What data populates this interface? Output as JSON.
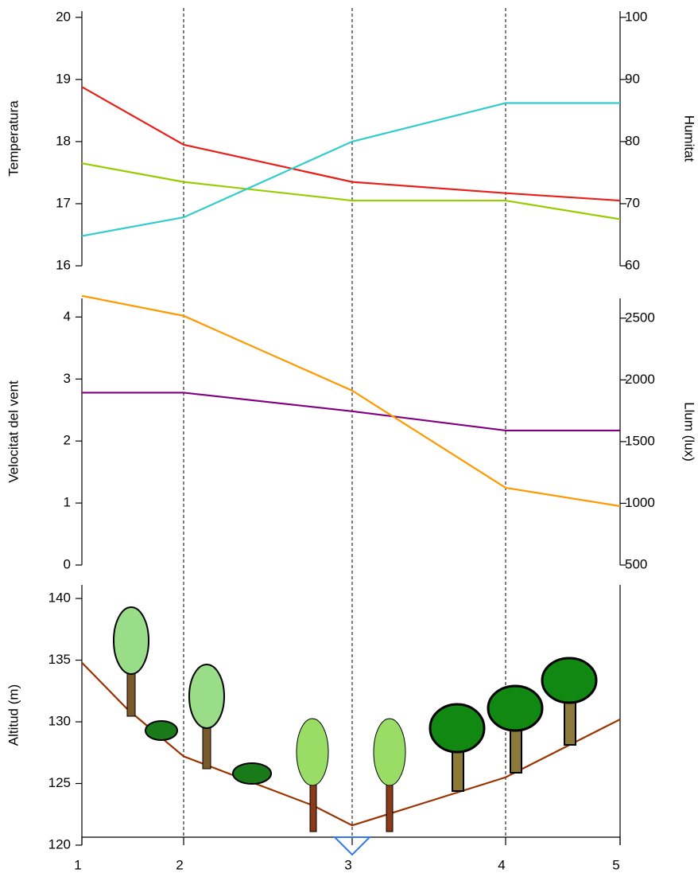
{
  "chart_data": [
    {
      "type": "line",
      "y_label": "Temperatura",
      "y2_label": "Humitat",
      "x": [
        1,
        2,
        3,
        4,
        5
      ],
      "ylim": [
        16,
        20.1
      ],
      "yticks": [
        16,
        17,
        18,
        19,
        20
      ],
      "y2lim": [
        60,
        101
      ],
      "y2ticks": [
        60,
        70,
        80,
        90,
        100
      ],
      "series": [
        {
          "color": "#e8201a",
          "values": [
            18.88,
            17.95,
            17.35,
            17.17,
            17.05
          ]
        },
        {
          "color": "#99cc00",
          "values": [
            17.65,
            17.35,
            17.05,
            17.05,
            16.75
          ]
        },
        {
          "color": "#33cccc",
          "axis": "y2",
          "values": [
            64.8,
            67.8,
            80,
            86.2,
            86.2
          ]
        }
      ]
    },
    {
      "type": "line",
      "y_label": "Velocitat del vent",
      "y2_label": "Llum (lux)",
      "x": [
        1,
        2,
        3,
        4,
        5
      ],
      "ylim": [
        0,
        4.3
      ],
      "yticks": [
        0,
        1,
        2,
        3,
        4
      ],
      "y2lim": [
        500,
        2660
      ],
      "y2ticks": [
        500,
        1000,
        1500,
        2000,
        2500
      ],
      "series": [
        {
          "color": "#800080",
          "values": [
            2.78,
            2.78,
            2.48,
            2.17,
            2.17
          ]
        },
        {
          "color": "#ff9900",
          "axis": "y2",
          "values": [
            2681,
            2519,
            1913,
            1126,
            977
          ]
        }
      ]
    },
    {
      "type": "line",
      "y_label": "Altitud (m)",
      "x": [
        1,
        1.45,
        2,
        2.77,
        3,
        4,
        5
      ],
      "ylim": [
        120,
        141.1
      ],
      "yticks": [
        120,
        125,
        130,
        135,
        140
      ],
      "xticks": [
        1,
        2,
        3,
        4,
        5
      ],
      "series": [
        {
          "color": "#993300",
          "values": [
            134.8,
            131,
            127.2,
            123.2,
            121.6,
            125.5,
            130.2
          ]
        }
      ]
    }
  ]
}
